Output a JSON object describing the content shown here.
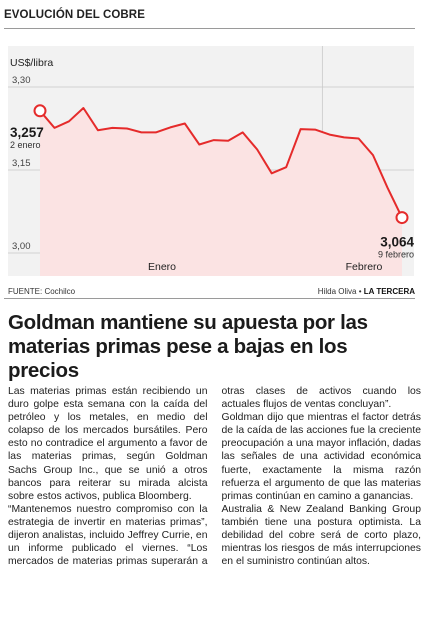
{
  "chart_data": {
    "type": "area",
    "title": "EVOLUCIÓN DEL COBRE",
    "ylabel": "US$/libra",
    "ylim": [
      3.0,
      3.3
    ],
    "yticks": [
      "3,30",
      "3,15",
      "3,00"
    ],
    "yticks_values": [
      3.3,
      3.15,
      3.0
    ],
    "x_groups": [
      {
        "label": "Enero",
        "start": 0,
        "end": 19
      },
      {
        "label": "Febrero",
        "start": 20,
        "end": 25
      }
    ],
    "x": [
      0,
      1,
      2,
      3,
      4,
      5,
      6,
      7,
      8,
      9,
      10,
      11,
      12,
      13,
      14,
      15,
      16,
      17,
      18,
      19,
      20,
      21,
      22,
      23,
      24,
      25
    ],
    "values": [
      3.257,
      3.226,
      3.238,
      3.262,
      3.222,
      3.226,
      3.225,
      3.218,
      3.218,
      3.227,
      3.234,
      3.196,
      3.204,
      3.203,
      3.218,
      3.187,
      3.144,
      3.155,
      3.224,
      3.223,
      3.214,
      3.209,
      3.207,
      3.177,
      3.118,
      3.064
    ],
    "annotations": [
      {
        "index": 0,
        "value": "3,257",
        "date": "2 enero"
      },
      {
        "index": 25,
        "value": "3,064",
        "date": "9 febrero"
      }
    ],
    "line_color": "#e52b2b",
    "fill_color": "#fbe3e3",
    "grid": true
  },
  "source": "FUENTE: Cochilco",
  "credit_author": "Hilda Oliva",
  "credit_outlet": "LA TERCERA",
  "headline": "Goldman mantiene su apuesta por las materias primas pese a bajas en los precios",
  "paragraphs": [
    "Las materias primas están recibiendo un duro golpe esta semana con la caída del petróleo y los metales, en medio del colapso de los mercados bursátiles. Pero esto no contradice el argumento a favor de las materias primas, según Goldman Sachs Group Inc., que se unió a otros bancos para reiterar su mirada alcista sobre estos activos, publica Bloomberg.",
    "“Mantenemos nuestro compromiso con la estrategia de invertir en materias primas”, dijeron analistas, incluido Jeffrey Currie, en un informe publicado el viernes. “Los mercados de materias primas superarán a otras clases de activos cuando los actuales flujos de ventas concluyan”.",
    "Goldman dijo que mientras el factor detrás de la caída de las acciones fue la creciente preocupación a una mayor inflación, dadas las señales de una actividad económica fuerte, exactamente la misma razón refuerza el argumento de que las materias primas continúan en camino a ganancias.",
    "Australia & New Zealand Banking Group también tiene una postura optimista. La debilidad del cobre será de corto plazo, mientras los riesgos de más interrupciones en el suministro continúan altos."
  ]
}
